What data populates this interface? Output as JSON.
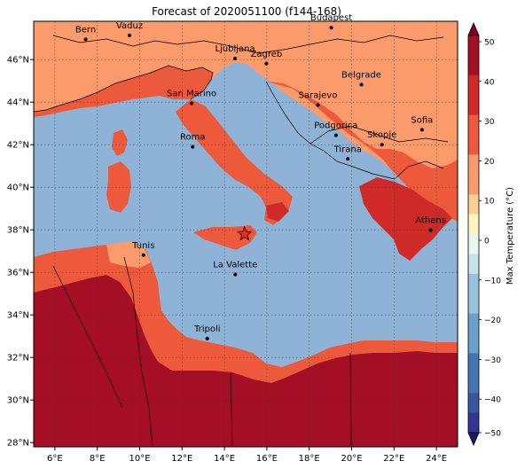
{
  "title": "Forecast of 2020051100 (f144-168)",
  "colorbar": {
    "label": "Max Temperature (°C)",
    "ticks": [
      "50",
      "40",
      "30",
      "20",
      "10",
      "0",
      "−10",
      "−20",
      "−30",
      "−40",
      "−50"
    ],
    "colors": [
      "#800026",
      "#a50f25",
      "#cf2a27",
      "#ec5a3b",
      "#fb9a6a",
      "#fdcf94",
      "#fff6bf",
      "#eaf6ee",
      "#c6e3ee",
      "#97c3de",
      "#6b9fcc",
      "#4575b4",
      "#3a55a0",
      "#313695",
      "#1a1a6b"
    ]
  },
  "x_axis": {
    "ticks": [
      "6°E",
      "8°E",
      "10°E",
      "12°E",
      "14°E",
      "16°E",
      "18°E",
      "20°E",
      "22°E",
      "24°E"
    ]
  },
  "y_axis": {
    "ticks": [
      "46°N",
      "44°N",
      "42°N",
      "40°N",
      "38°N",
      "36°N",
      "34°N",
      "32°N",
      "30°N",
      "28°N"
    ]
  },
  "cities": [
    {
      "name": "Bern"
    },
    {
      "name": "Vaduz"
    },
    {
      "name": "Budapest"
    },
    {
      "name": "Ljubljana"
    },
    {
      "name": "Zagreb"
    },
    {
      "name": "Belgrade"
    },
    {
      "name": "San Marino"
    },
    {
      "name": "Sarajevo"
    },
    {
      "name": "Sofia"
    },
    {
      "name": "Podgorica"
    },
    {
      "name": "Skopje"
    },
    {
      "name": "Roma"
    },
    {
      "name": "Tirana"
    },
    {
      "name": "Athens"
    },
    {
      "name": "Tunis"
    },
    {
      "name": "La Valette"
    },
    {
      "name": "Tripoli"
    }
  ],
  "marker": {
    "type": "star",
    "color": "#e8331f"
  },
  "colors": {
    "sea": "#8fb3d6",
    "land_warm": "#ec5a3b",
    "land_mild": "#fb9a6a",
    "land_hot": "#a50f25",
    "border": "#000000"
  }
}
